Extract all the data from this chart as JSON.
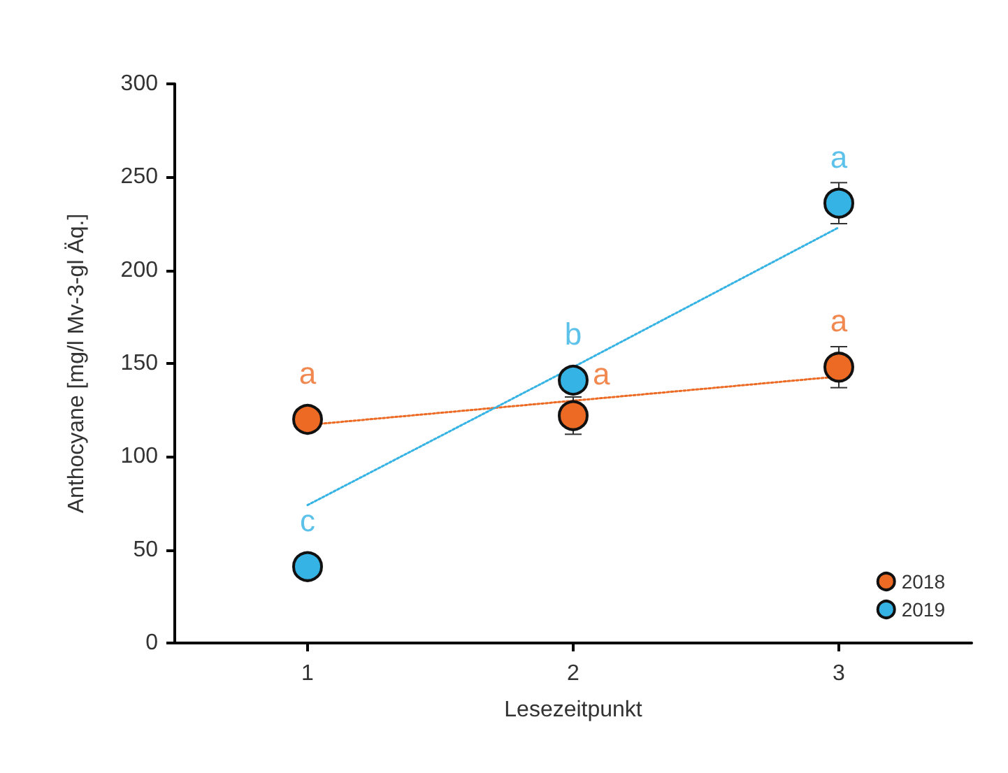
{
  "chart_data": {
    "type": "scatter",
    "xlabel": "Lesezeitpunkt",
    "ylabel": "Anthocyane [mg/l Mv-3-gl Äq.]",
    "x": [
      1,
      2,
      3
    ],
    "series": [
      {
        "name": "2018",
        "color": "#ec6a23",
        "values": [
          120,
          122,
          148
        ],
        "errors": [
          null,
          10,
          11
        ]
      },
      {
        "name": "2019",
        "color": "#35b3e5",
        "values": [
          41,
          141,
          236
        ],
        "errors": [
          null,
          null,
          11
        ]
      },
      {
        "type": "line",
        "color": "#ec6a23",
        "values": [
          117,
          130,
          143
        ],
        "line_style": "dotted",
        "marker": "none"
      },
      {
        "type": "line",
        "color": "#35b3e5",
        "values": [
          74,
          148,
          223
        ],
        "line_style": "dotted",
        "marker": "none"
      }
    ],
    "annotations": [
      {
        "text": "a",
        "x": 1,
        "y": 120
      },
      {
        "text": "a",
        "x": 2,
        "y": 122
      },
      {
        "text": "a",
        "x": 3,
        "y": 148
      },
      {
        "text": "c",
        "x": 1,
        "y": 41
      },
      {
        "text": "b",
        "x": 2,
        "y": 141
      },
      {
        "text": "a",
        "x": 3,
        "y": 236
      }
    ],
    "xlim": [
      0.5,
      3.5
    ],
    "xticks": [
      1,
      2,
      3
    ],
    "ylim": [
      0,
      300
    ],
    "yticks": [
      0,
      50,
      100,
      150,
      200,
      250,
      300
    ],
    "marker": "circle",
    "grid": false,
    "legend": "bottom right"
  }
}
